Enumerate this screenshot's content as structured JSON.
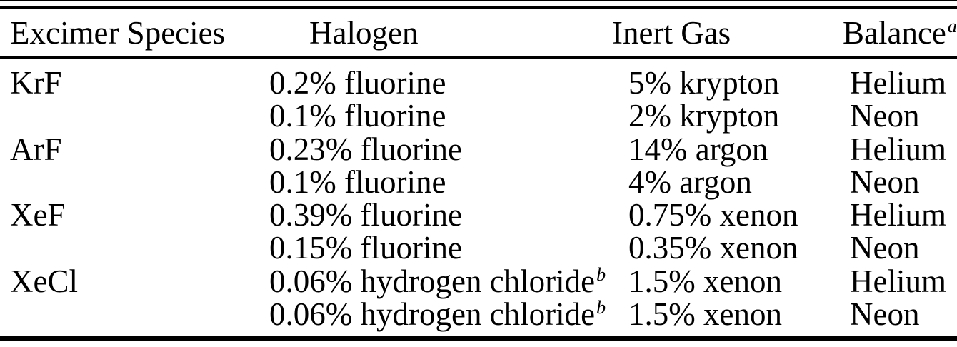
{
  "table": {
    "colors": {
      "text": "#000000",
      "background": "#ffffff",
      "rule": "#000000"
    },
    "headers": {
      "species": "Excimer Species",
      "halogen": "Halogen",
      "inert_gas": "Inert Gas",
      "balance": "Balance",
      "balance_note": "a"
    },
    "rows": [
      {
        "species": "KrF",
        "halogen": "0.2% fluorine",
        "inert_gas": "5% krypton",
        "balance": "Helium"
      },
      {
        "species": "",
        "halogen": "0.1% fluorine",
        "inert_gas": "2% krypton",
        "balance": "Neon"
      },
      {
        "species": "ArF",
        "halogen": "0.23% fluorine",
        "inert_gas": "14% argon",
        "balance": "Helium"
      },
      {
        "species": "",
        "halogen": "0.1% fluorine",
        "inert_gas": "4% argon",
        "balance": "Neon"
      },
      {
        "species": "XeF",
        "halogen": "0.39% fluorine",
        "inert_gas": "0.75% xenon",
        "balance": "Helium"
      },
      {
        "species": "",
        "halogen": "0.15% fluorine",
        "inert_gas": "0.35% xenon",
        "balance": "Neon"
      },
      {
        "species": "XeCl",
        "halogen": "0.06% hydrogen chloride",
        "halogen_note": "b",
        "inert_gas": "1.5% xenon",
        "balance": "Helium"
      },
      {
        "species": "",
        "halogen": "0.06% hydrogen chloride",
        "halogen_note": "b",
        "inert_gas": "1.5% xenon",
        "balance": "Neon"
      }
    ]
  }
}
